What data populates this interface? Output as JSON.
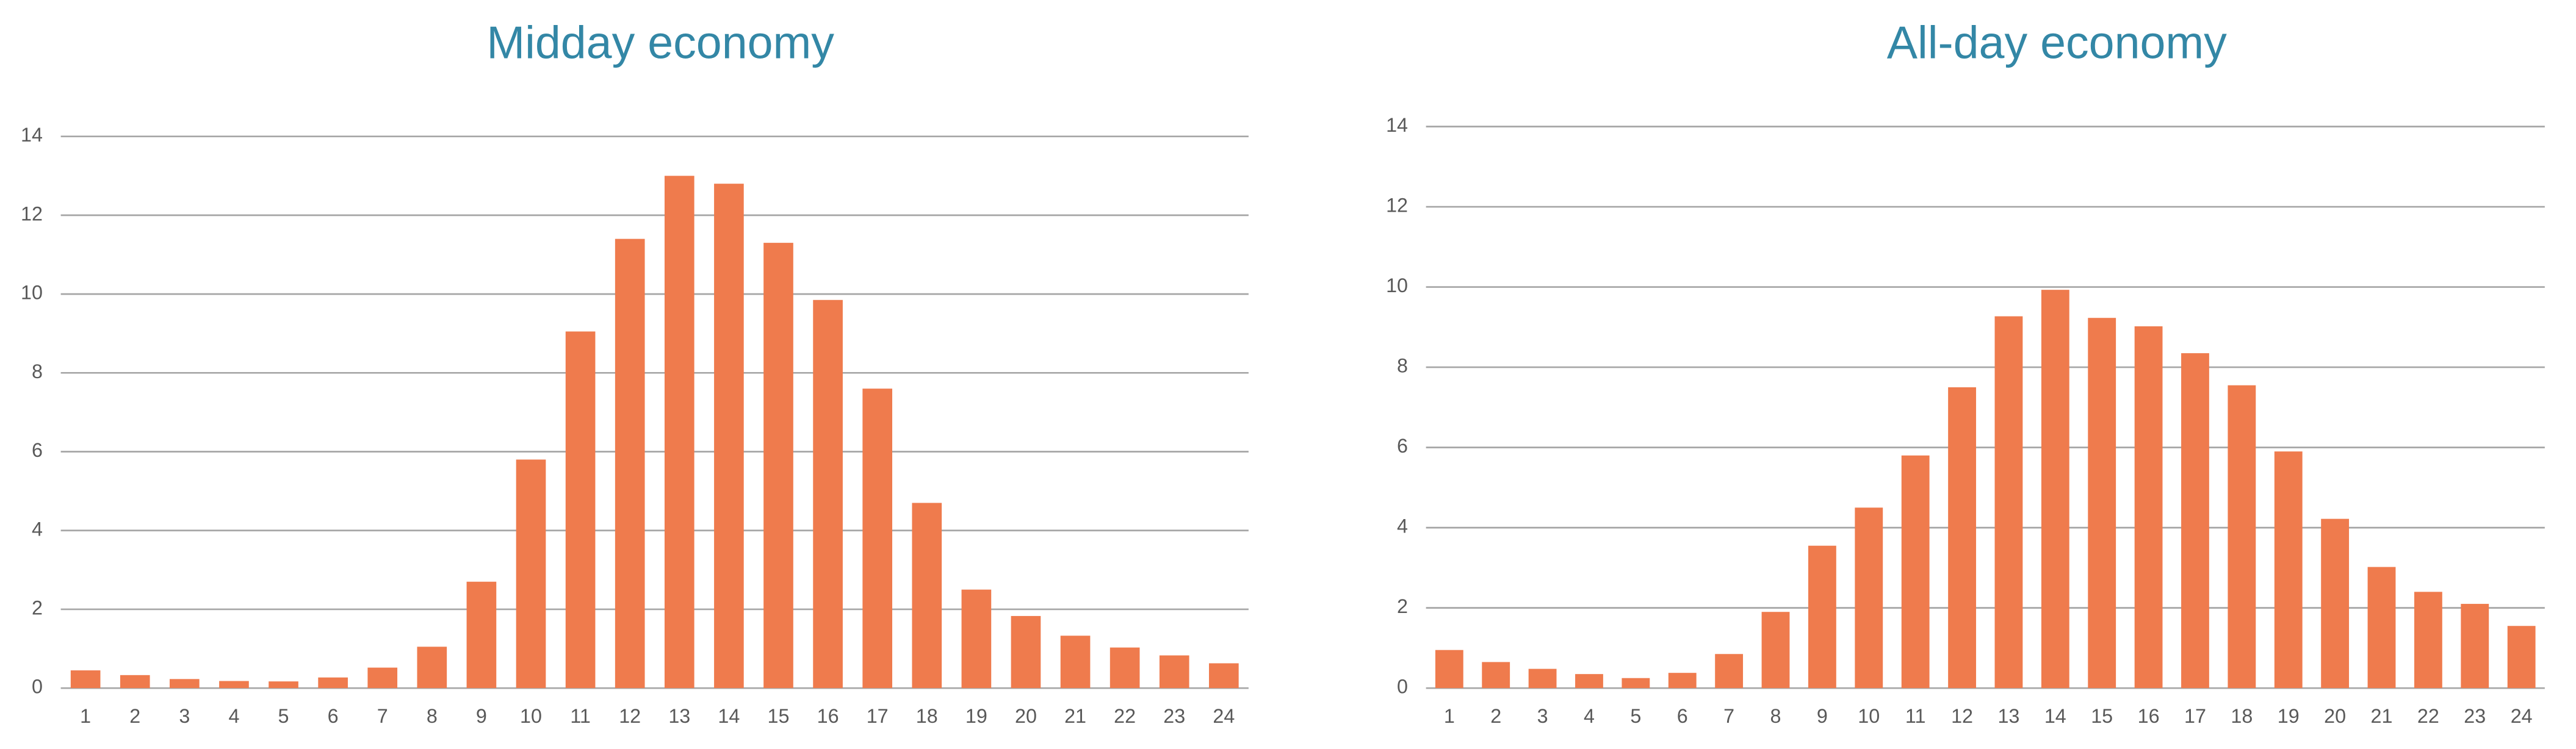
{
  "chart_data": [
    {
      "type": "bar",
      "title": "Midday economy",
      "categories": [
        1,
        2,
        3,
        4,
        5,
        6,
        7,
        8,
        9,
        10,
        11,
        12,
        13,
        14,
        15,
        16,
        17,
        18,
        19,
        20,
        21,
        22,
        23,
        24
      ],
      "values": [
        0.45,
        0.33,
        0.23,
        0.18,
        0.17,
        0.27,
        0.52,
        1.05,
        2.7,
        5.8,
        9.05,
        11.4,
        13.0,
        12.8,
        11.3,
        9.85,
        7.6,
        4.7,
        2.5,
        1.83,
        1.33,
        1.03,
        0.83,
        0.63
      ],
      "color": "#ef7b4d",
      "ylim": [
        0,
        14
      ],
      "yticks": [
        0,
        2,
        4,
        6,
        8,
        10,
        12,
        14
      ],
      "grid": true
    },
    {
      "type": "bar",
      "title": "All-day economy",
      "categories": [
        1,
        2,
        3,
        4,
        5,
        6,
        7,
        8,
        9,
        10,
        11,
        12,
        13,
        14,
        15,
        16,
        17,
        18,
        19,
        20,
        21,
        22,
        23,
        24
      ],
      "values": [
        0.95,
        0.65,
        0.48,
        0.35,
        0.25,
        0.38,
        0.85,
        1.9,
        3.55,
        4.5,
        5.8,
        7.5,
        9.27,
        9.93,
        9.23,
        9.02,
        8.35,
        7.55,
        5.9,
        4.22,
        3.02,
        2.4,
        2.1,
        1.55
      ],
      "color": "#ef7b4d",
      "ylim": [
        0,
        14
      ],
      "yticks": [
        0,
        2,
        4,
        6,
        8,
        10,
        12,
        14
      ],
      "grid": true
    }
  ]
}
